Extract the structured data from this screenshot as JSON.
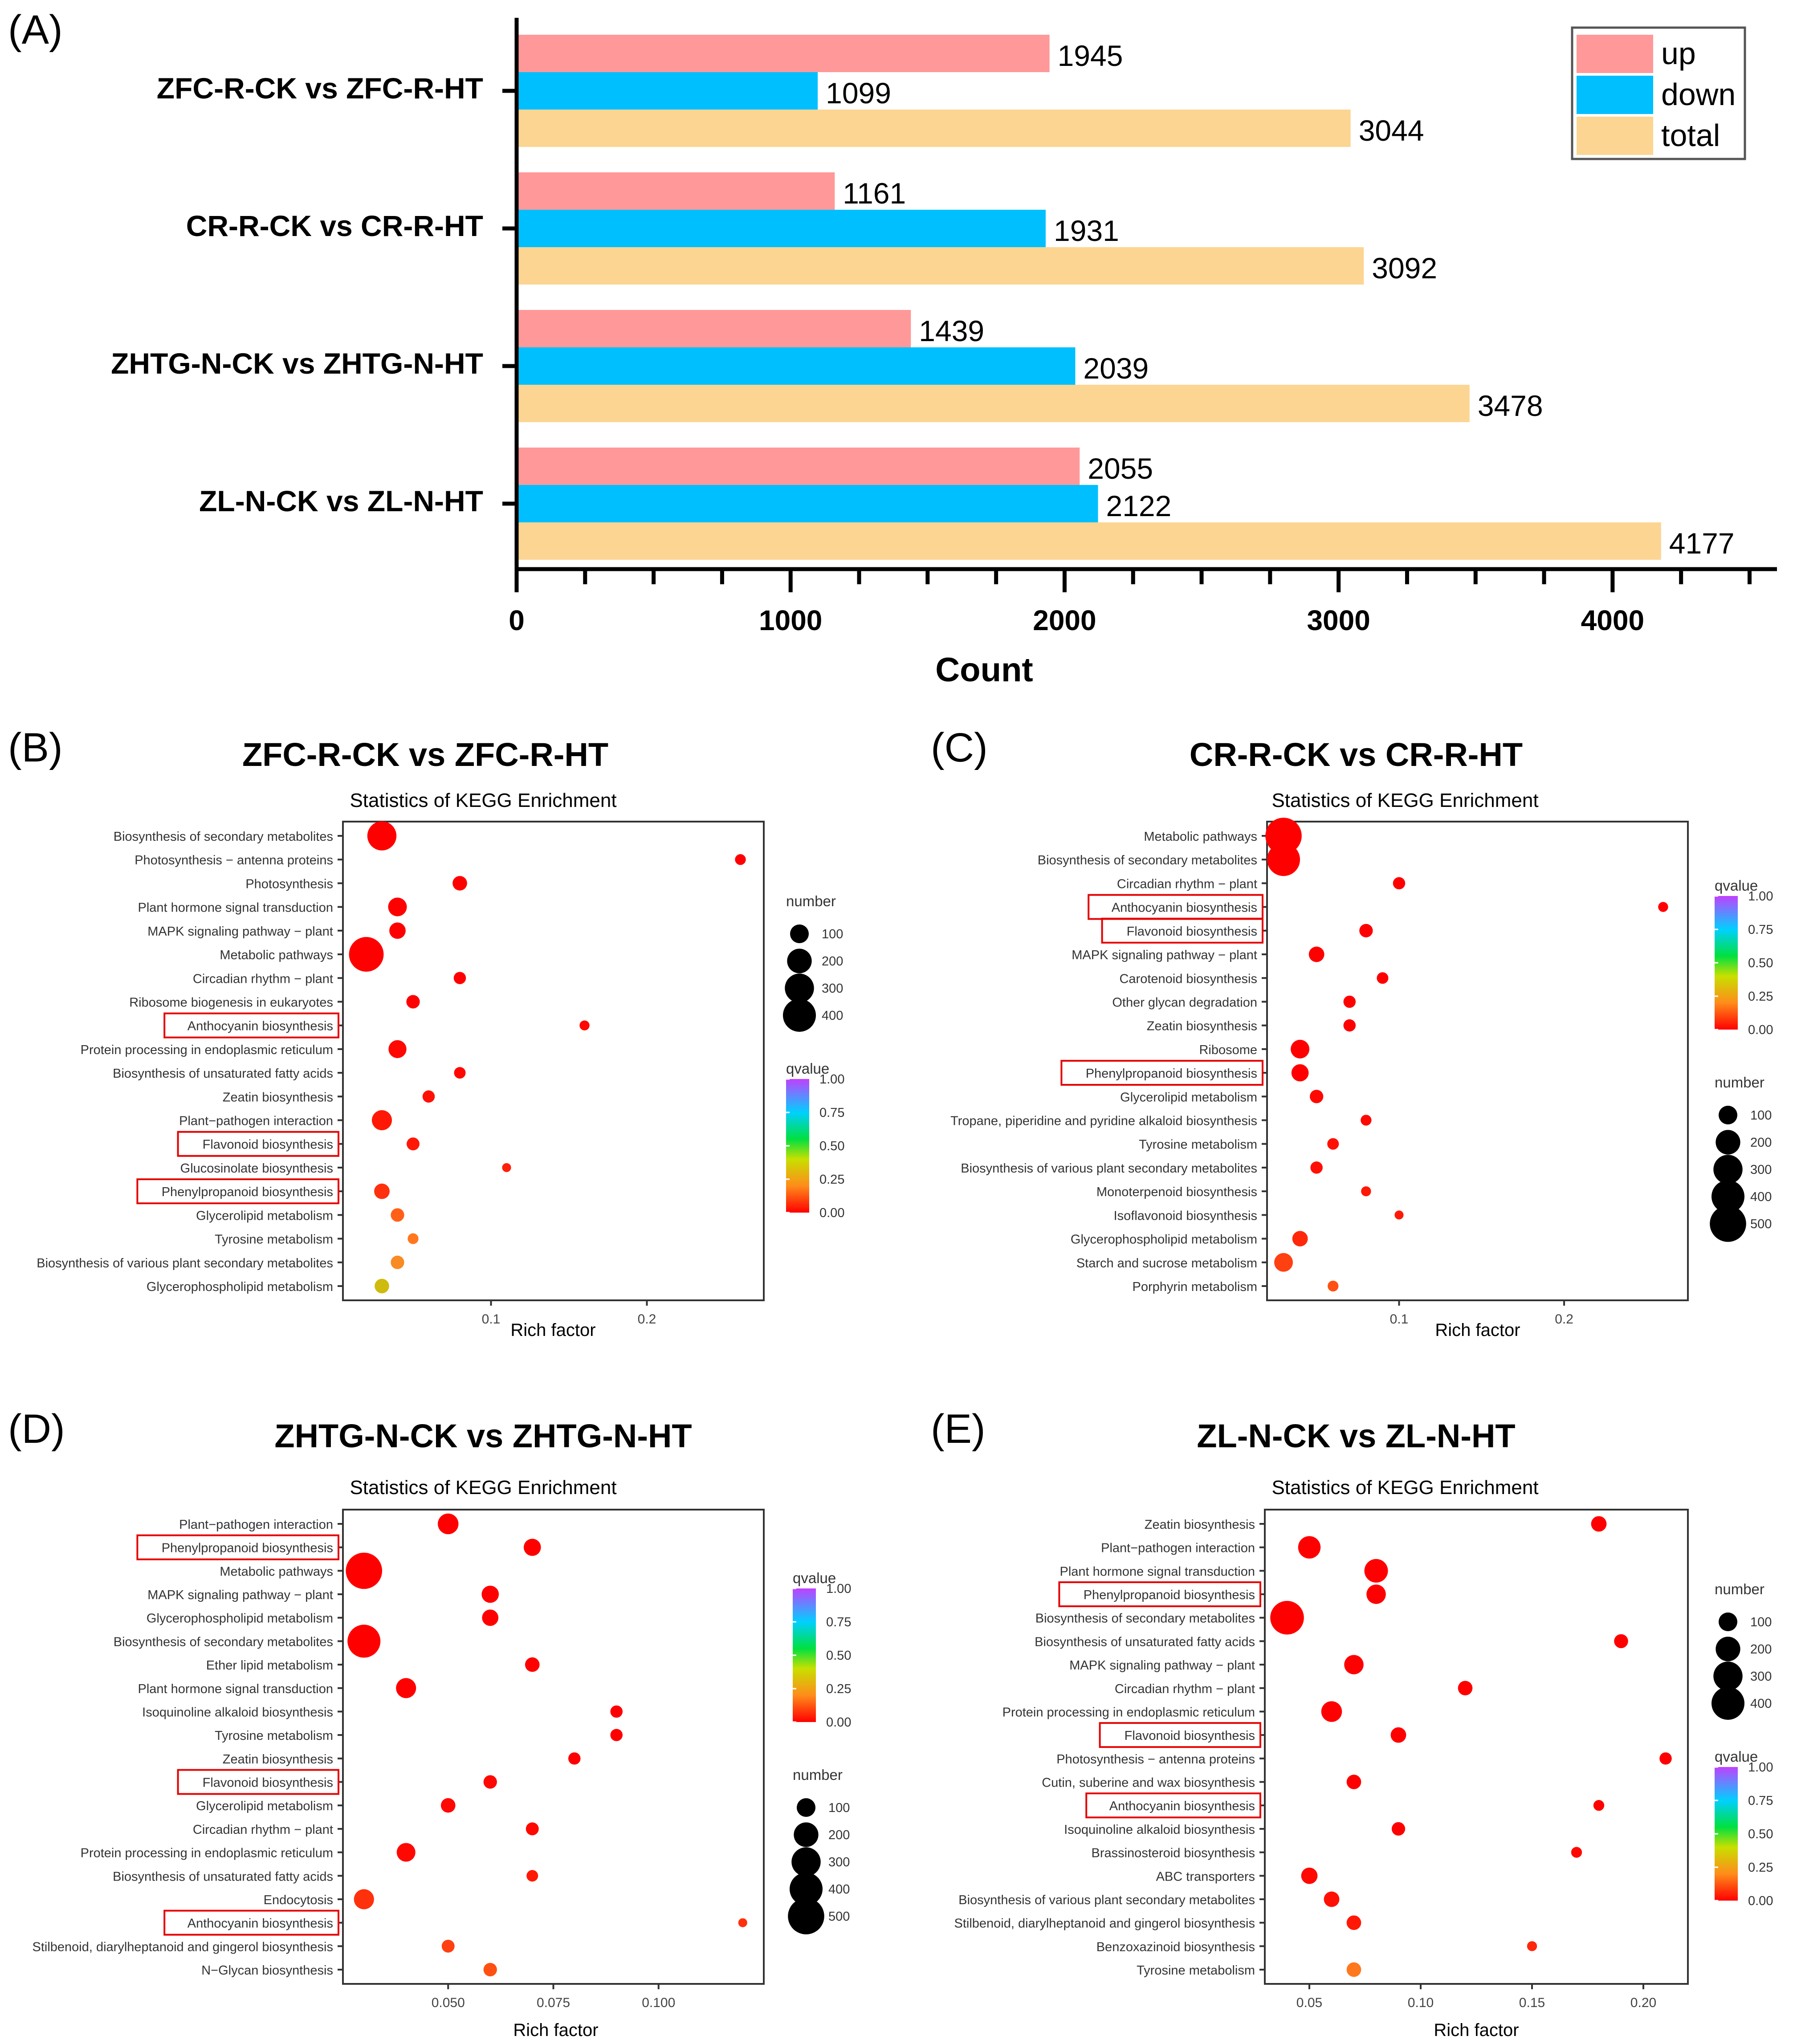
{
  "chart_data": [
    {
      "panel_label": "(A)",
      "type": "bar",
      "orientation": "horizontal",
      "title": "",
      "categories": [
        "ZFC-R-CK vs ZFC-R-HT",
        "CR-R-CK vs CR-R-HT",
        "ZHTG-N-CK vs ZHTG-N-HT",
        "ZL-N-CK vs ZL-N-HT"
      ],
      "series": [
        {
          "name": "up",
          "color": "#ff9999",
          "values": [
            1945,
            1161,
            1439,
            2055
          ]
        },
        {
          "name": "down",
          "color": "#00bfff",
          "values": [
            1099,
            1931,
            2039,
            2122
          ]
        },
        {
          "name": "total",
          "color": "#fcd593",
          "values": [
            3044,
            3092,
            3478,
            4177
          ]
        }
      ],
      "xlabel": "Count",
      "ylabel": "",
      "xlim": [
        0,
        4600
      ],
      "xticks": [
        0,
        1000,
        2000,
        3000,
        4000
      ],
      "legend_position": "top-right"
    },
    {
      "panel_label": "(B)",
      "type": "scatter",
      "title": "ZFC-R-CK vs ZFC-R-HT",
      "subtitle": "Statistics of KEGG Enrichment",
      "xlabel": "Rich factor",
      "xlim": [
        0.005,
        0.275
      ],
      "xticks": [
        0.1,
        0.2
      ],
      "xtick_labels": [
        "0.1",
        "0.2"
      ],
      "size_legend": {
        "title": "number",
        "values": [
          100,
          200,
          300,
          400
        ]
      },
      "color_legend": {
        "title": "qvalue",
        "ticks": [
          "1.00",
          "0.75",
          "0.50",
          "0.25",
          "0.00"
        ]
      },
      "legend_order": [
        "size",
        "color"
      ],
      "terms": [
        {
          "name": "Biosynthesis of secondary metabolites",
          "rich": 0.03,
          "number": 300,
          "q": 0.0
        },
        {
          "name": "Photosynthesis − antenna proteins",
          "rich": 0.26,
          "number": 20,
          "q": 0.0
        },
        {
          "name": "Photosynthesis",
          "rich": 0.08,
          "number": 50,
          "q": 0.0
        },
        {
          "name": "Plant hormone signal transduction",
          "rich": 0.04,
          "number": 100,
          "q": 0.0
        },
        {
          "name": "MAPK signaling pathway − plant",
          "rich": 0.04,
          "number": 70,
          "q": 0.0
        },
        {
          "name": "Metabolic pathways",
          "rich": 0.02,
          "number": 450,
          "q": 0.0
        },
        {
          "name": "Circadian rhythm − plant",
          "rich": 0.08,
          "number": 30,
          "q": 0.0
        },
        {
          "name": "Ribosome biogenesis in eukaryotes",
          "rich": 0.05,
          "number": 40,
          "q": 0.0
        },
        {
          "name": "Anthocyanin biosynthesis",
          "rich": 0.16,
          "number": 15,
          "q": 0.01,
          "highlight": true
        },
        {
          "name": "Protein processing in endoplasmic reticulum",
          "rich": 0.04,
          "number": 90,
          "q": 0.01
        },
        {
          "name": "Biosynthesis of unsaturated fatty acids",
          "rich": 0.08,
          "number": 25,
          "q": 0.01
        },
        {
          "name": "Zeatin biosynthesis",
          "rich": 0.06,
          "number": 30,
          "q": 0.02
        },
        {
          "name": "Plant−pathogen interaction",
          "rich": 0.03,
          "number": 120,
          "q": 0.03
        },
        {
          "name": "Flavonoid biosynthesis",
          "rich": 0.05,
          "number": 35,
          "q": 0.03,
          "highlight": true
        },
        {
          "name": "Glucosinolate biosynthesis",
          "rich": 0.11,
          "number": 10,
          "q": 0.04
        },
        {
          "name": "Phenylpropanoid biosynthesis",
          "rich": 0.03,
          "number": 60,
          "q": 0.06,
          "highlight": true
        },
        {
          "name": "Glycerolipid metabolism",
          "rich": 0.04,
          "number": 40,
          "q": 0.12
        },
        {
          "name": "Tyrosine metabolism",
          "rich": 0.05,
          "number": 20,
          "q": 0.15
        },
        {
          "name": "Biosynthesis of various plant secondary metabolites",
          "rich": 0.04,
          "number": 40,
          "q": 0.22
        },
        {
          "name": "Glycerophospholipid metabolism",
          "rich": 0.03,
          "number": 50,
          "q": 0.4
        }
      ]
    },
    {
      "panel_label": "(C)",
      "type": "scatter",
      "title": "CR-R-CK vs CR-R-HT",
      "subtitle": "Statistics of KEGG Enrichment",
      "xlabel": "Rich factor",
      "xlim": [
        0.02,
        0.275
      ],
      "xticks": [
        0.1,
        0.2
      ],
      "xtick_labels": [
        "0.1",
        "0.2"
      ],
      "size_legend": {
        "title": "number",
        "values": [
          100,
          200,
          300,
          400,
          500
        ]
      },
      "color_legend": {
        "title": "qvalue",
        "ticks": [
          "1.00",
          "0.75",
          "0.50",
          "0.25",
          "0.00"
        ]
      },
      "legend_order": [
        "color",
        "size"
      ],
      "terms": [
        {
          "name": "Metabolic pathways",
          "rich": 0.03,
          "number": 500,
          "q": 0.0
        },
        {
          "name": "Biosynthesis of secondary metabolites",
          "rich": 0.03,
          "number": 400,
          "q": 0.0
        },
        {
          "name": "Circadian rhythm − plant",
          "rich": 0.1,
          "number": 30,
          "q": 0.0
        },
        {
          "name": "Anthocyanin biosynthesis",
          "rich": 0.26,
          "number": 15,
          "q": 0.0,
          "highlight": true
        },
        {
          "name": "Flavonoid biosynthesis",
          "rich": 0.08,
          "number": 40,
          "q": 0.0,
          "highlight": true
        },
        {
          "name": "MAPK signaling pathway − plant",
          "rich": 0.05,
          "number": 60,
          "q": 0.0
        },
        {
          "name": "Carotenoid biosynthesis",
          "rich": 0.09,
          "number": 25,
          "q": 0.0
        },
        {
          "name": "Other glycan degradation",
          "rich": 0.07,
          "number": 30,
          "q": 0.0
        },
        {
          "name": "Zeatin biosynthesis",
          "rich": 0.07,
          "number": 30,
          "q": 0.0
        },
        {
          "name": "Ribosome",
          "rich": 0.04,
          "number": 100,
          "q": 0.0
        },
        {
          "name": "Phenylpropanoid biosynthesis",
          "rich": 0.04,
          "number": 80,
          "q": 0.0,
          "highlight": true
        },
        {
          "name": "Glycerolipid metabolism",
          "rich": 0.05,
          "number": 40,
          "q": 0.01
        },
        {
          "name": "Tropane, piperidine and pyridine alkaloid biosynthesis",
          "rich": 0.08,
          "number": 20,
          "q": 0.01
        },
        {
          "name": "Tyrosine metabolism",
          "rich": 0.06,
          "number": 25,
          "q": 0.02
        },
        {
          "name": "Biosynthesis of various plant secondary metabolites",
          "rich": 0.05,
          "number": 30,
          "q": 0.02
        },
        {
          "name": "Monoterpenoid biosynthesis",
          "rich": 0.08,
          "number": 15,
          "q": 0.03
        },
        {
          "name": "Isoflavonoid biosynthesis",
          "rich": 0.1,
          "number": 10,
          "q": 0.03
        },
        {
          "name": "Glycerophospholipid metabolism",
          "rich": 0.04,
          "number": 60,
          "q": 0.05
        },
        {
          "name": "Starch and sucrose metabolism",
          "rich": 0.03,
          "number": 100,
          "q": 0.08
        },
        {
          "name": "Porphyrin metabolism",
          "rich": 0.06,
          "number": 20,
          "q": 0.1
        }
      ]
    },
    {
      "panel_label": "(D)",
      "type": "scatter",
      "title": "ZHTG-N-CK vs ZHTG-N-HT",
      "subtitle": "Statistics of KEGG Enrichment",
      "xlabel": "Rich factor",
      "xlim": [
        0.025,
        0.125
      ],
      "xticks": [
        0.05,
        0.075,
        0.1
      ],
      "xtick_labels": [
        "0.050",
        "0.075",
        "0.100"
      ],
      "size_legend": {
        "title": "number",
        "values": [
          100,
          200,
          300,
          400,
          500
        ]
      },
      "color_legend": {
        "title": "qvalue",
        "ticks": [
          "1.00",
          "0.75",
          "0.50",
          "0.25",
          "0.00"
        ]
      },
      "legend_order": [
        "color",
        "size"
      ],
      "terms": [
        {
          "name": "Plant−pathogen interaction",
          "rich": 0.05,
          "number": 130,
          "q": 0.0
        },
        {
          "name": "Phenylpropanoid biosynthesis",
          "rich": 0.07,
          "number": 80,
          "q": 0.0,
          "highlight": true
        },
        {
          "name": "Metabolic pathways",
          "rich": 0.03,
          "number": 500,
          "q": 0.0
        },
        {
          "name": "MAPK signaling pathway − plant",
          "rich": 0.06,
          "number": 80,
          "q": 0.0
        },
        {
          "name": "Glycerophospholipid metabolism",
          "rich": 0.06,
          "number": 70,
          "q": 0.0
        },
        {
          "name": "Biosynthesis of secondary metabolites",
          "rich": 0.03,
          "number": 400,
          "q": 0.0
        },
        {
          "name": "Ether lipid metabolism",
          "rich": 0.07,
          "number": 50,
          "q": 0.0
        },
        {
          "name": "Plant hormone signal transduction",
          "rich": 0.04,
          "number": 120,
          "q": 0.0
        },
        {
          "name": "Isoquinoline alkaloid biosynthesis",
          "rich": 0.09,
          "number": 30,
          "q": 0.0
        },
        {
          "name": "Tyrosine metabolism",
          "rich": 0.09,
          "number": 30,
          "q": 0.0
        },
        {
          "name": "Zeatin biosynthesis",
          "rich": 0.08,
          "number": 30,
          "q": 0.0
        },
        {
          "name": "Flavonoid biosynthesis",
          "rich": 0.06,
          "number": 40,
          "q": 0.01,
          "highlight": true
        },
        {
          "name": "Glycerolipid metabolism",
          "rich": 0.05,
          "number": 50,
          "q": 0.01
        },
        {
          "name": "Circadian rhythm − plant",
          "rich": 0.07,
          "number": 35,
          "q": 0.01
        },
        {
          "name": "Protein processing in endoplasmic reticulum",
          "rich": 0.04,
          "number": 100,
          "q": 0.01
        },
        {
          "name": "Biosynthesis of unsaturated fatty acids",
          "rich": 0.07,
          "number": 25,
          "q": 0.03
        },
        {
          "name": "Endocytosis",
          "rich": 0.03,
          "number": 120,
          "q": 0.06
        },
        {
          "name": "Anthocyanin biosynthesis",
          "rich": 0.12,
          "number": 10,
          "q": 0.06,
          "highlight": true
        },
        {
          "name": "Stilbenoid, diarylheptanoid and gingerol biosynthesis",
          "rich": 0.05,
          "number": 35,
          "q": 0.08
        },
        {
          "name": "N−Glycan biosynthesis",
          "rich": 0.06,
          "number": 40,
          "q": 0.1
        }
      ]
    },
    {
      "panel_label": "(E)",
      "type": "scatter",
      "title": "ZL-N-CK vs ZL-N-HT",
      "subtitle": "Statistics of KEGG Enrichment",
      "xlabel": "Rich factor",
      "xlim": [
        0.03,
        0.22
      ],
      "xticks": [
        0.05,
        0.1,
        0.15,
        0.2
      ],
      "xtick_labels": [
        "0.05",
        "0.10",
        "0.15",
        "0.20"
      ],
      "size_legend": {
        "title": "number",
        "values": [
          100,
          200,
          300,
          400
        ]
      },
      "color_legend": {
        "title": "qvalue",
        "ticks": [
          "1.00",
          "0.75",
          "0.50",
          "0.25",
          "0.00"
        ]
      },
      "legend_order": [
        "size",
        "color"
      ],
      "terms": [
        {
          "name": "Zeatin biosynthesis",
          "rich": 0.18,
          "number": 60,
          "q": 0.0
        },
        {
          "name": "Plant−pathogen interaction",
          "rich": 0.05,
          "number": 160,
          "q": 0.0
        },
        {
          "name": "Plant hormone signal transduction",
          "rich": 0.08,
          "number": 180,
          "q": 0.0
        },
        {
          "name": "Phenylpropanoid biosynthesis",
          "rich": 0.08,
          "number": 110,
          "q": 0.0,
          "highlight": true
        },
        {
          "name": "Biosynthesis of secondary metabolites",
          "rich": 0.04,
          "number": 420,
          "q": 0.0
        },
        {
          "name": "Biosynthesis of unsaturated fatty acids",
          "rich": 0.19,
          "number": 45,
          "q": 0.0
        },
        {
          "name": "MAPK signaling pathway − plant",
          "rich": 0.07,
          "number": 110,
          "q": 0.0
        },
        {
          "name": "Circadian rhythm − plant",
          "rich": 0.12,
          "number": 50,
          "q": 0.0
        },
        {
          "name": "Protein processing in endoplasmic reticulum",
          "rich": 0.06,
          "number": 130,
          "q": 0.0
        },
        {
          "name": "Flavonoid biosynthesis",
          "rich": 0.09,
          "number": 60,
          "q": 0.0,
          "highlight": true
        },
        {
          "name": "Photosynthesis − antenna proteins",
          "rich": 0.21,
          "number": 30,
          "q": 0.0
        },
        {
          "name": "Cutin, suberine and wax biosynthesis",
          "rich": 0.07,
          "number": 50,
          "q": 0.0
        },
        {
          "name": "Anthocyanin biosynthesis",
          "rich": 0.18,
          "number": 20,
          "q": 0.0,
          "highlight": true
        },
        {
          "name": "Isoquinoline alkaloid biosynthesis",
          "rich": 0.09,
          "number": 40,
          "q": 0.0
        },
        {
          "name": "Brassinosteroid biosynthesis",
          "rich": 0.17,
          "number": 20,
          "q": 0.01
        },
        {
          "name": "ABC transporters",
          "rich": 0.05,
          "number": 70,
          "q": 0.01
        },
        {
          "name": "Biosynthesis of various plant secondary metabolites",
          "rich": 0.06,
          "number": 60,
          "q": 0.02
        },
        {
          "name": "Stilbenoid, diarylheptanoid and gingerol biosynthesis",
          "rich": 0.07,
          "number": 50,
          "q": 0.03
        },
        {
          "name": "Benzoxazinoid biosynthesis",
          "rich": 0.15,
          "number": 15,
          "q": 0.05
        },
        {
          "name": "Tyrosine metabolism",
          "rich": 0.07,
          "number": 50,
          "q": 0.15
        }
      ]
    }
  ]
}
